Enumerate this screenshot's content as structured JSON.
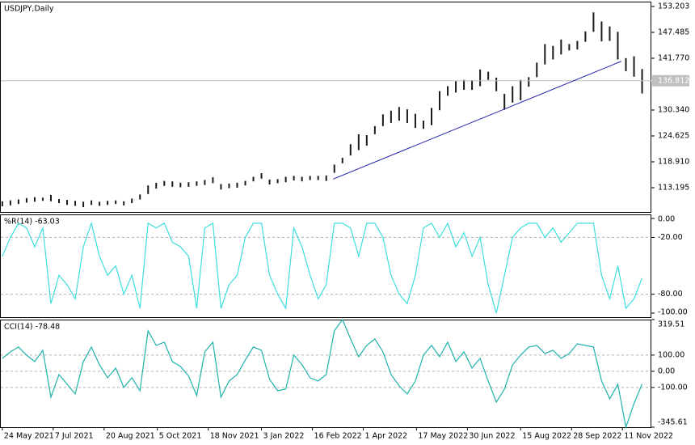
{
  "chart_data": [
    {
      "type": "ohlc",
      "title": "USDJPY,Daily",
      "color": "#1a1a1a",
      "x": [
        "2021-05-24",
        "2021-05-31",
        "2021-06-07",
        "2021-06-14",
        "2021-06-21",
        "2021-06-28",
        "2021-07-05",
        "2021-07-12",
        "2021-07-19",
        "2021-07-26",
        "2021-08-02",
        "2021-08-09",
        "2021-08-16",
        "2021-08-23",
        "2021-08-30",
        "2021-09-06",
        "2021-09-13",
        "2021-09-20",
        "2021-09-27",
        "2021-10-04",
        "2021-10-11",
        "2021-10-18",
        "2021-10-25",
        "2021-11-01",
        "2021-11-08",
        "2021-11-15",
        "2021-11-22",
        "2021-11-29",
        "2021-12-06",
        "2021-12-13",
        "2021-12-20",
        "2021-12-27",
        "2022-01-03",
        "2022-01-10",
        "2022-01-17",
        "2022-01-24",
        "2022-01-31",
        "2022-02-07",
        "2022-02-14",
        "2022-02-21",
        "2022-02-28",
        "2022-03-07",
        "2022-03-14",
        "2022-03-21",
        "2022-03-28",
        "2022-04-04",
        "2022-04-11",
        "2022-04-18",
        "2022-04-25",
        "2022-05-02",
        "2022-05-09",
        "2022-05-16",
        "2022-05-23",
        "2022-05-30",
        "2022-06-06",
        "2022-06-13",
        "2022-06-20",
        "2022-06-27",
        "2022-07-04",
        "2022-07-11",
        "2022-07-18",
        "2022-07-25",
        "2022-08-01",
        "2022-08-08",
        "2022-08-15",
        "2022-08-22",
        "2022-08-29",
        "2022-09-05",
        "2022-09-12",
        "2022-09-19",
        "2022-09-26",
        "2022-10-03",
        "2022-10-10",
        "2022-10-17",
        "2022-10-24",
        "2022-10-31",
        "2022-11-07",
        "2022-11-14",
        "2022-11-21",
        "2022-11-28"
      ],
      "high": [
        110.2,
        110.4,
        110.6,
        110.9,
        111.1,
        111.0,
        111.6,
        110.7,
        110.5,
        110.3,
        110.1,
        110.4,
        110.1,
        110.3,
        110.4,
        110.2,
        110.8,
        111.7,
        113.7,
        114.3,
        114.7,
        114.6,
        114.3,
        114.4,
        114.6,
        114.9,
        115.5,
        114.0,
        114.1,
        114.3,
        114.7,
        115.6,
        116.4,
        115.0,
        115.1,
        115.6,
        115.8,
        115.6,
        115.8,
        115.8,
        115.9,
        118.3,
        119.8,
        122.8,
        125.0,
        124.8,
        126.8,
        129.4,
        130.2,
        131.0,
        130.5,
        129.5,
        128.0,
        130.8,
        134.5,
        135.6,
        136.7,
        137.0,
        136.9,
        139.3,
        138.8,
        137.5,
        133.9,
        135.6,
        137.0,
        137.6,
        140.8,
        144.9,
        144.5,
        145.9,
        144.9,
        145.6,
        147.7,
        151.9,
        149.9,
        148.8,
        147.6,
        141.8,
        142.2,
        139.4
      ],
      "low": [
        109.1,
        109.3,
        109.6,
        109.9,
        110.1,
        110.3,
        110.2,
        109.8,
        109.4,
        109.2,
        108.9,
        109.4,
        109.2,
        109.4,
        109.6,
        109.3,
        109.8,
        110.6,
        111.8,
        113.0,
        113.6,
        113.4,
        113.3,
        113.4,
        113.6,
        113.8,
        114.2,
        112.8,
        113.1,
        113.2,
        113.7,
        114.6,
        115.2,
        113.9,
        114.2,
        114.4,
        114.8,
        114.6,
        114.9,
        114.9,
        114.7,
        116.5,
        118.6,
        120.3,
        121.5,
        122.5,
        125.0,
        126.8,
        127.5,
        128.0,
        127.5,
        126.4,
        126.2,
        127.0,
        130.3,
        133.5,
        134.2,
        134.8,
        134.8,
        135.6,
        137.0,
        134.5,
        130.4,
        132.0,
        132.5,
        135.5,
        137.6,
        140.4,
        141.5,
        142.6,
        143.5,
        143.7,
        145.4,
        147.6,
        145.5,
        145.6,
        141.5,
        138.9,
        137.7,
        134.0
      ],
      "current": 136.812,
      "trendline": {
        "x": [
          "2022-03-06",
          "2022-11-10"
        ],
        "values": [
          115.1,
          141.1
        ],
        "color": "#1c1ca8"
      },
      "xlim": [
        "2021-05-22",
        "2022-12-06"
      ],
      "xticks": [
        {
          "value": "2021-05-24",
          "label": "24 May 2021"
        },
        {
          "value": "2021-07-07",
          "label": "7 Jul 2021"
        },
        {
          "value": "2021-08-20",
          "label": "20 Aug 2021"
        },
        {
          "value": "2021-10-05",
          "label": "5 Oct 2021"
        },
        {
          "value": "2021-11-18",
          "label": "18 Nov 2021"
        },
        {
          "value": "2022-01-03",
          "label": "3 Jan 2022"
        },
        {
          "value": "2022-02-16",
          "label": "16 Feb 2022"
        },
        {
          "value": "2022-04-01",
          "label": "1 Apr 2022"
        },
        {
          "value": "2022-05-17",
          "label": "17 May 2022"
        },
        {
          "value": "2022-06-30",
          "label": "30 Jun 2022"
        },
        {
          "value": "2022-08-15",
          "label": "15 Aug 2022"
        },
        {
          "value": "2022-09-28",
          "label": "28 Sep 2022"
        },
        {
          "value": "2022-11-11",
          "label": "11 Nov 2022"
        }
      ],
      "ylim": [
        107.84,
        154.27
      ],
      "yticks": [
        153.203,
        147.485,
        {
          "value": 141.77,
          "label": "141.770"
        },
        {
          "value": 130.34,
          "label": "130.340"
        },
        124.625,
        {
          "value": 118.91,
          "label": "118.910"
        },
        113.195
      ]
    },
    {
      "type": "line",
      "title": "%R(14) -63.03",
      "color": "#3fdede",
      "values": [
        -40,
        -20,
        -5,
        -10,
        -30,
        -10,
        -90,
        -60,
        -70,
        -85,
        -30,
        -5,
        -40,
        -60,
        -50,
        -80,
        -60,
        -95,
        -5,
        -10,
        -5,
        -25,
        -30,
        -40,
        -95,
        -10,
        -5,
        -95,
        -70,
        -60,
        -20,
        -5,
        -5,
        -60,
        -80,
        -95,
        -10,
        -30,
        -60,
        -85,
        -70,
        -5,
        -5,
        -10,
        -40,
        -5,
        -5,
        -20,
        -60,
        -80,
        -90,
        -60,
        -10,
        -5,
        -20,
        -5,
        -30,
        -15,
        -40,
        -20,
        -70,
        -100,
        -60,
        -20,
        -10,
        -5,
        -5,
        -20,
        -10,
        -25,
        -15,
        -5,
        -5,
        -5,
        -60,
        -85,
        -50,
        -95,
        -85,
        -63.03
      ],
      "ylim": [
        -104.3,
        4.3
      ],
      "yticks": [
        {
          "value": 0,
          "label": "0.00"
        },
        {
          "value": -20,
          "label": "-20.00"
        },
        {
          "value": -80,
          "label": "-80.00"
        },
        {
          "value": -100,
          "label": "-100.00"
        }
      ],
      "levels": [
        -20,
        -80
      ]
    },
    {
      "type": "line",
      "title": "CCI(14) -78.48",
      "color": "#20b2aa",
      "values": [
        80,
        120,
        150,
        100,
        60,
        130,
        -160,
        -20,
        -80,
        -140,
        60,
        150,
        40,
        -40,
        20,
        -100,
        -40,
        -120,
        250,
        160,
        180,
        60,
        30,
        -30,
        -150,
        120,
        180,
        -160,
        -60,
        -20,
        70,
        150,
        130,
        -50,
        -120,
        -110,
        100,
        40,
        -40,
        -60,
        -20,
        250,
        319.51,
        200,
        90,
        160,
        200,
        120,
        -20,
        -90,
        -140,
        -60,
        100,
        160,
        90,
        180,
        60,
        120,
        20,
        80,
        -60,
        -190,
        -110,
        40,
        100,
        150,
        160,
        110,
        130,
        80,
        110,
        170,
        160,
        150,
        -60,
        -170,
        -80,
        -345.61,
        -200,
        -78.48
      ],
      "ylim": [
        -345.61,
        319.51
      ],
      "yticks": [
        319.51,
        {
          "value": 100,
          "label": "100.00"
        },
        {
          "value": 0,
          "label": "0.00"
        },
        {
          "value": -100,
          "label": "-100.00"
        },
        -345.61
      ],
      "levels": [
        100,
        0,
        -100
      ]
    }
  ]
}
